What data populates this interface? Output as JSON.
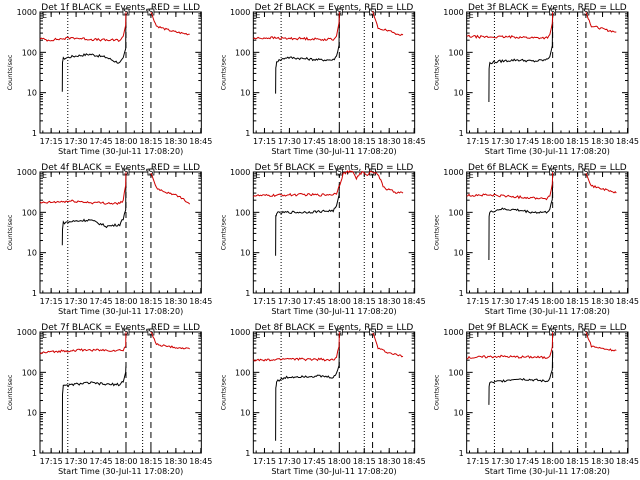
{
  "figure": {
    "tick_labels_x": [
      "17:15",
      "17:30",
      "17:45",
      "18:00",
      "18:15",
      "18:30",
      "18:45"
    ],
    "tick_labels_y": [
      "1",
      "10",
      "100",
      "1000"
    ],
    "xlabel": "Start Time (30-Jul-11 17:08:20)",
    "ylabel": "Counts/sec",
    "colors": {
      "events": "#000000",
      "lld": "#d00000",
      "frame": "#000000",
      "background": "#ffffff"
    }
  },
  "chart_data": [
    {
      "type": "line",
      "title": "Det 1f BLACK = Events, RED = LLD",
      "xlabel": "Start Time (30-Jul-11 17:08:20)",
      "ylabel": "Counts/sec",
      "x_range_min": [
        0,
        97
      ],
      "ylim": [
        1,
        1000
      ],
      "log_y": true,
      "dotted_lines_min": [
        16.7,
        61.7
      ],
      "dashed_lines_min": [
        51.7,
        66.7
      ],
      "markers": [
        "S",
        "S"
      ],
      "series": [
        {
          "color": "#000000",
          "x": [
            13.4,
            13.5,
            14,
            20,
            30,
            40,
            45,
            48,
            50,
            51.5,
            51.7
          ],
          "y": [
            10,
            60,
            70,
            80,
            90,
            75,
            60,
            55,
            70,
            120,
            900
          ]
        },
        {
          "color": "#d00000",
          "x": [
            0,
            5,
            10,
            20,
            30,
            40,
            48,
            50,
            51.5,
            51.7
          ],
          "y": [
            220,
            200,
            210,
            230,
            210,
            200,
            200,
            240,
            500,
            1000
          ],
          "x2": [
            66.7,
            70,
            75,
            80,
            85,
            90
          ],
          "y2": [
            1000,
            450,
            380,
            330,
            300,
            280
          ]
        }
      ]
    },
    {
      "type": "line",
      "title": "Det 2f BLACK = Events, RED = LLD",
      "xlabel": "Start Time (30-Jul-11 17:08:20)",
      "ylabel": "Counts/sec",
      "x_range_min": [
        0,
        97
      ],
      "ylim": [
        1,
        1000
      ],
      "log_y": true,
      "dotted_lines_min": [
        16.7,
        66.7
      ],
      "dashed_lines_min": [
        51.7,
        71.7
      ],
      "markers": [
        "S",
        "S"
      ],
      "series": [
        {
          "color": "#000000",
          "x": [
            13.4,
            13.5,
            14,
            20,
            30,
            40,
            48,
            50,
            51.5,
            51.7
          ],
          "y": [
            10,
            40,
            60,
            75,
            70,
            65,
            65,
            80,
            150,
            1000
          ]
        },
        {
          "color": "#d00000",
          "x": [
            0,
            10,
            20,
            30,
            40,
            48,
            50,
            51.5,
            51.7
          ],
          "y": [
            220,
            230,
            220,
            220,
            210,
            210,
            260,
            500,
            1000
          ],
          "x2": [
            71.7,
            75,
            80,
            85,
            90
          ],
          "y2": [
            1000,
            400,
            350,
            300,
            270
          ]
        }
      ]
    },
    {
      "type": "line",
      "title": "Det 3f BLACK = Events, RED = LLD",
      "xlabel": "Start Time (30-Jul-11 17:08:20)",
      "ylabel": "Counts/sec",
      "x_range_min": [
        0,
        97
      ],
      "ylim": [
        1,
        1000
      ],
      "log_y": true,
      "dotted_lines_min": [
        16.7,
        66.7
      ],
      "dashed_lines_min": [
        51.7,
        71.7
      ],
      "markers": [
        "S",
        "S"
      ],
      "series": [
        {
          "color": "#000000",
          "x": [
            13.4,
            13.5,
            14,
            20,
            30,
            40,
            48,
            50,
            51.5,
            51.7
          ],
          "y": [
            6,
            40,
            55,
            60,
            65,
            60,
            65,
            80,
            150,
            900
          ]
        },
        {
          "color": "#d00000",
          "x": [
            0,
            10,
            20,
            30,
            40,
            48,
            50,
            51.5,
            51.7
          ],
          "y": [
            250,
            240,
            240,
            240,
            230,
            230,
            260,
            500,
            1000
          ],
          "x2": [
            71.7,
            75,
            80,
            85,
            90
          ],
          "y2": [
            1000,
            450,
            400,
            350,
            320
          ]
        }
      ]
    },
    {
      "type": "line",
      "title": "Det 4f BLACK = Events, RED = LLD",
      "xlabel": "Start Time (30-Jul-11 17:08:20)",
      "ylabel": "Counts/sec",
      "x_range_min": [
        0,
        97
      ],
      "ylim": [
        1,
        1000
      ],
      "log_y": true,
      "dotted_lines_min": [
        16.7,
        61.7
      ],
      "dashed_lines_min": [
        51.7,
        66.7
      ],
      "markers": [
        "S",
        "S"
      ],
      "series": [
        {
          "color": "#000000",
          "x": [
            13.4,
            13.5,
            14,
            20,
            30,
            40,
            48,
            50,
            51.5,
            51.7
          ],
          "y": [
            15,
            40,
            55,
            60,
            65,
            45,
            50,
            70,
            120,
            900
          ]
        },
        {
          "color": "#d00000",
          "x": [
            0,
            10,
            20,
            30,
            40,
            48,
            50,
            51.5,
            51.7
          ],
          "y": [
            170,
            180,
            190,
            175,
            170,
            165,
            200,
            450,
            1000
          ],
          "x2": [
            66.7,
            70,
            75,
            80,
            85,
            90
          ],
          "y2": [
            1000,
            400,
            320,
            280,
            230,
            160
          ]
        }
      ]
    },
    {
      "type": "line",
      "title": "Det 5f BLACK = Events, RED = LLD",
      "xlabel": "Start Time (30-Jul-11 17:08:20)",
      "ylabel": "Counts/sec",
      "x_range_min": [
        0,
        97
      ],
      "ylim": [
        1,
        1000
      ],
      "log_y": true,
      "dotted_lines_min": [
        16.7,
        66.7
      ],
      "dashed_lines_min": [
        51.7,
        71.7
      ],
      "markers": [
        "S",
        "S"
      ],
      "series": [
        {
          "color": "#000000",
          "x": [
            13.4,
            13.5,
            14,
            20,
            30,
            40,
            48,
            50,
            51.5,
            51.7
          ],
          "y": [
            8,
            80,
            95,
            100,
            100,
            105,
            110,
            140,
            250,
            500
          ]
        },
        {
          "color": "#d00000",
          "x": [
            0,
            10,
            20,
            30,
            40,
            48,
            50,
            52,
            54,
            56,
            58,
            60,
            62,
            64,
            66,
            68,
            70,
            72,
            74,
            76,
            78,
            80,
            85,
            90
          ],
          "y": [
            260,
            260,
            270,
            275,
            270,
            280,
            300,
            500,
            900,
            1000,
            1000,
            1000,
            700,
            900,
            1000,
            800,
            1000,
            1000,
            1000,
            700,
            450,
            380,
            320,
            300
          ]
        }
      ]
    },
    {
      "type": "line",
      "title": "Det 6f BLACK = Events, RED = LLD",
      "xlabel": "Start Time (30-Jul-11 17:08:20)",
      "ylabel": "Counts/sec",
      "x_range_min": [
        0,
        97
      ],
      "ylim": [
        1,
        1000
      ],
      "log_y": true,
      "dotted_lines_min": [
        16.7,
        66.7
      ],
      "dashed_lines_min": [
        51.7,
        71.7
      ],
      "markers": [
        "S",
        "S"
      ],
      "series": [
        {
          "color": "#000000",
          "x": [
            13.4,
            13.5,
            14,
            20,
            30,
            40,
            48,
            50,
            51.5,
            51.7
          ],
          "y": [
            7,
            80,
            100,
            120,
            115,
            100,
            100,
            120,
            200,
            600
          ]
        },
        {
          "color": "#d00000",
          "x": [
            0,
            10,
            20,
            30,
            40,
            48,
            50,
            51.5,
            51.7
          ],
          "y": [
            260,
            270,
            260,
            240,
            230,
            220,
            250,
            500,
            1000
          ],
          "x2": [
            71.7,
            75,
            80,
            85,
            90
          ],
          "y2": [
            1000,
            450,
            400,
            350,
            300
          ]
        }
      ]
    },
    {
      "type": "line",
      "title": "Det 7f BLACK = Events, RED = LLD",
      "xlabel": "Start Time (30-Jul-11 17:08:20)",
      "ylabel": "Counts/sec",
      "x_range_min": [
        0,
        97
      ],
      "ylim": [
        1,
        1000
      ],
      "log_y": true,
      "dotted_lines_min": [
        16.7,
        61.7
      ],
      "dashed_lines_min": [
        51.7,
        66.7
      ],
      "markers": [
        "S",
        "S"
      ],
      "series": [
        {
          "color": "#000000",
          "x": [
            13.4,
            13.5,
            14,
            20,
            30,
            40,
            48,
            50,
            51.5,
            51.7
          ],
          "y": [
            1,
            30,
            45,
            50,
            55,
            50,
            50,
            60,
            100,
            150
          ]
        },
        {
          "color": "#d00000",
          "x": [
            0,
            10,
            20,
            30,
            40,
            48,
            50,
            51.5,
            51.7
          ],
          "y": [
            300,
            330,
            350,
            360,
            350,
            350,
            360,
            450,
            1000
          ],
          "x2": [
            66.7,
            70,
            75,
            80,
            85,
            90
          ],
          "y2": [
            1000,
            500,
            450,
            420,
            400,
            380
          ]
        }
      ]
    },
    {
      "type": "line",
      "title": "Det 8f BLACK = Events, RED = LLD",
      "xlabel": "Start Time (30-Jul-11 17:08:20)",
      "ylabel": "Counts/sec",
      "x_range_min": [
        0,
        97
      ],
      "ylim": [
        1,
        1000
      ],
      "log_y": true,
      "dotted_lines_min": [
        16.7,
        66.7
      ],
      "dashed_lines_min": [
        51.7,
        71.7
      ],
      "markers": [
        "S",
        "S"
      ],
      "series": [
        {
          "color": "#000000",
          "x": [
            13.4,
            13.5,
            14,
            20,
            30,
            40,
            48,
            50,
            51.5,
            51.7
          ],
          "y": [
            2,
            40,
            60,
            75,
            80,
            80,
            75,
            90,
            150,
            400
          ]
        },
        {
          "color": "#d00000",
          "x": [
            0,
            10,
            20,
            30,
            40,
            48,
            50,
            51.5,
            51.7
          ],
          "y": [
            200,
            200,
            220,
            210,
            210,
            200,
            230,
            450,
            1000
          ],
          "x2": [
            71.7,
            75,
            80,
            85,
            90
          ],
          "y2": [
            1000,
            400,
            320,
            280,
            250
          ]
        }
      ]
    },
    {
      "type": "line",
      "title": "Det 9f BLACK = Events, RED = LLD",
      "xlabel": "Start Time (30-Jul-11 17:08:20)",
      "ylabel": "Counts/sec",
      "x_range_min": [
        0,
        97
      ],
      "ylim": [
        1,
        1000
      ],
      "log_y": true,
      "dotted_lines_min": [
        16.7,
        66.7
      ],
      "dashed_lines_min": [
        51.7,
        71.7
      ],
      "markers": [
        "S",
        "S"
      ],
      "series": [
        {
          "color": "#000000",
          "x": [
            13.4,
            13.5,
            14,
            20,
            30,
            40,
            48,
            50,
            51.5,
            51.7
          ],
          "y": [
            15,
            45,
            55,
            60,
            70,
            65,
            60,
            70,
            120,
            350
          ]
        },
        {
          "color": "#d00000",
          "x": [
            0,
            10,
            20,
            30,
            40,
            48,
            50,
            51.5,
            51.7
          ],
          "y": [
            230,
            240,
            250,
            240,
            240,
            230,
            260,
            450,
            1000
          ],
          "x2": [
            71.7,
            75,
            80,
            85,
            90
          ],
          "y2": [
            1000,
            450,
            400,
            370,
            350
          ]
        }
      ]
    }
  ]
}
